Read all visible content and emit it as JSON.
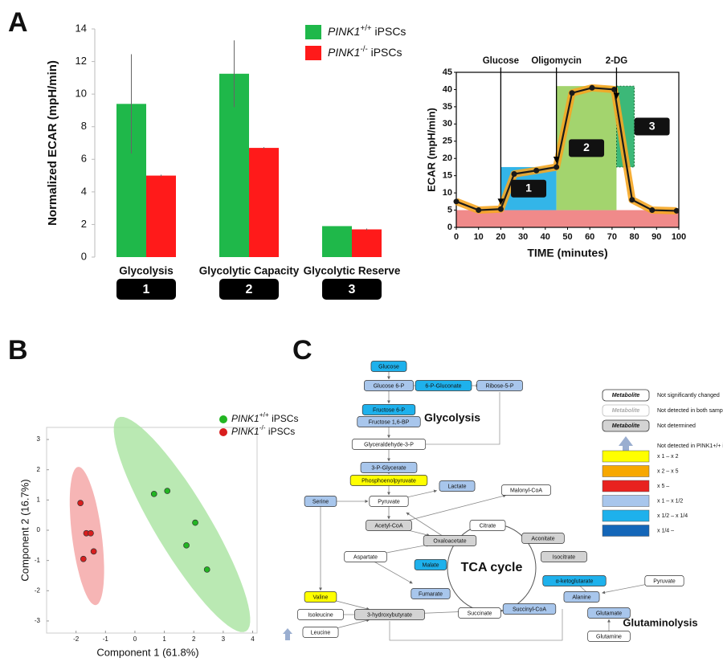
{
  "chart_data": [
    {
      "type": "bar",
      "panel": "A",
      "y_label": "Normalized ECAR (mpH/min)",
      "categories": [
        "Glycolysis",
        "Glycolytic Capacity",
        "Glycolytic Reserve"
      ],
      "category_badges": [
        "1",
        "2",
        "3"
      ],
      "series": [
        {
          "name": "PINK1+/+ iPSCs",
          "color": "#1fb84a",
          "values": [
            9.4,
            11.25,
            1.9
          ],
          "errors": [
            3.05,
            2.05,
            0
          ]
        },
        {
          "name": "PINK1-/- iPSCs",
          "color": "#ff1a1a",
          "values": [
            5.0,
            6.7,
            1.7
          ],
          "errors": [
            0.05,
            0.05,
            0.05
          ]
        }
      ],
      "ylim": [
        0,
        14
      ],
      "yticks": [
        0,
        2,
        4,
        6,
        8,
        10,
        12,
        14
      ],
      "grid": false
    },
    {
      "type": "line",
      "x_label": "TIME (minutes)",
      "y_label": "ECAR (mpH/min)",
      "x": [
        0,
        10,
        20,
        26,
        36,
        45,
        52,
        61,
        71,
        79,
        88,
        99
      ],
      "series": [
        {
          "color": "#1a1a1a",
          "halo_color": "#f5a623",
          "values": [
            7.5,
            5,
            5.3,
            15.5,
            16.5,
            17.5,
            39,
            40.5,
            40,
            8,
            5,
            4.8
          ]
        }
      ],
      "regions": [
        {
          "x": [
            0,
            100
          ],
          "y": [
            0,
            5
          ],
          "color": "#f08a8a"
        },
        {
          "label": "1",
          "x": [
            20,
            45
          ],
          "y": [
            5,
            17.5
          ],
          "color": "#33b5e8"
        },
        {
          "label": "2",
          "x": [
            45,
            72
          ],
          "y": [
            5,
            41
          ],
          "color": "#a3d46e"
        },
        {
          "label": "3",
          "x": [
            72,
            80
          ],
          "y": [
            17.5,
            41
          ],
          "color": "#3cb878"
        }
      ],
      "annotations": [
        {
          "text": "Glucose",
          "x": 20
        },
        {
          "text": "Oligomycin",
          "x": 45
        },
        {
          "text": "2-DG",
          "x": 72
        }
      ],
      "xlim": [
        0,
        100
      ],
      "xticks": [
        0,
        10,
        20,
        30,
        40,
        50,
        60,
        70,
        80,
        90,
        100
      ],
      "ylim": [
        0,
        45
      ],
      "yticks": [
        0,
        5,
        10,
        15,
        20,
        25,
        30,
        35,
        40,
        45
      ]
    },
    {
      "type": "scatter",
      "panel": "B",
      "x_label": "Component 1 (61.8%)",
      "y_label": "Component 2 (16.7%)",
      "series": [
        {
          "name": "PINK1+/+ iPSCs",
          "color": "#22b522",
          "region_color": "#a9e3a0",
          "x": [
            0.65,
            1.1,
            2.05,
            1.75,
            2.45
          ],
          "y": [
            1.2,
            1.3,
            0.25,
            -0.5,
            -1.3
          ]
        },
        {
          "name": "PINK1-/- iPSCs",
          "color": "#d81e1e",
          "region_color": "#f4a3a3",
          "x": [
            -1.85,
            -1.65,
            -1.5,
            -1.75,
            -1.4
          ],
          "y": [
            0.9,
            -0.1,
            -0.1,
            -0.95,
            -0.7
          ]
        }
      ],
      "xlim": [
        -3,
        4.15
      ],
      "xticks": [
        -2,
        -1,
        0,
        1,
        2,
        3,
        4
      ],
      "ylim": [
        -3.4,
        3.4
      ],
      "yticks": [
        -3,
        -2,
        -1,
        0,
        1,
        2,
        3
      ]
    }
  ],
  "diagram": {
    "panel": "C",
    "labels": [
      "Glycolysis",
      "TCA cycle",
      "Glutaminolysis"
    ],
    "nodes": [
      {
        "label": "Glucose",
        "color": "#1eb1ec"
      },
      {
        "label": "Glucose 6-P",
        "color": "#a8c6ec"
      },
      {
        "label": "6-P-Gluconate",
        "color": "#1eb1ec"
      },
      {
        "label": "Ribose-5-P",
        "color": "#a8c6ec"
      },
      {
        "label": "Fructose 6-P",
        "color": "#1eb1ec"
      },
      {
        "label": "Fructose 1,6-BP",
        "color": "#a8c6ec"
      },
      {
        "label": "Glyceraldehyde-3-P",
        "color": "#ffffff"
      },
      {
        "label": "3-P-Glycerate",
        "color": "#a8c6ec"
      },
      {
        "label": "Phosphoenolpyruvate",
        "color": "#ffff00"
      },
      {
        "label": "Lactate",
        "color": "#a8c6ec"
      },
      {
        "label": "Malonyl-CoA",
        "color": "#ffffff"
      },
      {
        "label": "Serine",
        "color": "#a8c6ec"
      },
      {
        "label": "Pyruvate",
        "color": "#ffffff"
      },
      {
        "label": "Acetyl-CoA",
        "color": "#d3d3d3"
      },
      {
        "label": "Citrate",
        "color": "#ffffff"
      },
      {
        "label": "Oxaloacetate",
        "color": "#d3d3d3"
      },
      {
        "label": "Aconitate",
        "color": "#d3d3d3"
      },
      {
        "label": "Aspartate",
        "color": "#ffffff"
      },
      {
        "label": "Malate",
        "color": "#1eb1ec"
      },
      {
        "label": "Isocitrate",
        "color": "#d3d3d3"
      },
      {
        "label": "α-ketoglutarate",
        "color": "#1eb1ec"
      },
      {
        "label": "Pyruvate",
        "color": "#ffffff"
      },
      {
        "label": "Fumarate",
        "color": "#a8c6ec"
      },
      {
        "label": "Alanine",
        "color": "#a8c6ec"
      },
      {
        "label": "Valine",
        "color": "#ffff00"
      },
      {
        "label": "Isoleucine",
        "color": "#ffffff"
      },
      {
        "label": "3-hydroxybutyrate",
        "color": "#d3d3d3"
      },
      {
        "label": "Succinate",
        "color": "#ffffff"
      },
      {
        "label": "Succinyl-CoA",
        "color": "#a8c6ec"
      },
      {
        "label": "Glutamate",
        "color": "#a8c6ec"
      },
      {
        "label": "Leucine",
        "color": "#ffffff"
      },
      {
        "label": "Glutamine",
        "color": "#ffffff"
      }
    ],
    "legend": {
      "items": [
        {
          "box": "Metabolite",
          "text": "Not significantly changed"
        },
        {
          "box": "Metabolite",
          "text": "Not detected in both samples"
        },
        {
          "box": "Metabolite",
          "text": "Not determined"
        },
        {
          "text": "Not detected in PINK1+/+ iPSCs"
        }
      ],
      "scale": [
        {
          "label": "x 1 – x 2",
          "color": "#ffff00"
        },
        {
          "label": "x 2 – x 5",
          "color": "#f7a800"
        },
        {
          "label": "x 5 –",
          "color": "#e8221f"
        },
        {
          "label": "x 1 – x 1/2",
          "color": "#a8c6ec"
        },
        {
          "label": "x 1/2 – x 1/4",
          "color": "#1eb1ec"
        },
        {
          "label": "x 1/4 –",
          "color": "#1466b8"
        }
      ]
    }
  }
}
